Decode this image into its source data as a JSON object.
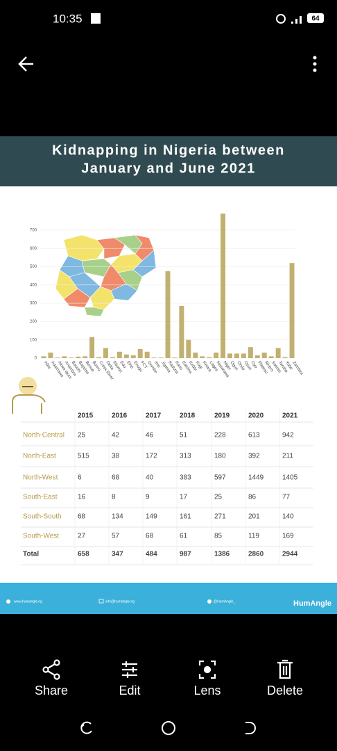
{
  "status_bar": {
    "time": "10:35",
    "battery": "64"
  },
  "toolbar": [
    "Share",
    "Edit",
    "Lens",
    "Delete"
  ],
  "infographic": {
    "title_lines": [
      "Kidnapping in Nigeria between",
      "January and June 2021"
    ],
    "chart_data": {
      "type": "bar",
      "color": "#c2b070",
      "categories": [
        "Abia",
        "Adamawa",
        "Akwa Ibom",
        "Anambra",
        "Bauchi",
        "Bayelsa",
        "Benue",
        "Borno",
        "Cross River",
        "Delta",
        "Ebonyi",
        "Edo",
        "Ekiti",
        "Enugu",
        "FCT",
        "Gombe",
        "Imo",
        "Jigawa",
        "Kaduna",
        "Kano",
        "Katsina",
        "Kebbi",
        "Kogi",
        "Kwara",
        "Lagos",
        "Nasarawa",
        "Niger",
        "Ogun",
        "Ondo",
        "Osun",
        "Oyo",
        "Plateau",
        "Rivers",
        "Sokoto",
        "Taraba",
        "Yobe",
        "Zamfara"
      ],
      "values": [
        10,
        30,
        3,
        10,
        3,
        8,
        10,
        115,
        5,
        55,
        5,
        35,
        20,
        15,
        50,
        35,
        3,
        3,
        475,
        3,
        285,
        100,
        30,
        10,
        5,
        30,
        790,
        25,
        25,
        25,
        60,
        15,
        30,
        10,
        55,
        5,
        520
      ],
      "ylim": [
        0,
        800
      ],
      "yticks": [
        0,
        100,
        200,
        300,
        400,
        500,
        600,
        700
      ],
      "grid": true
    },
    "table": {
      "header": [
        "2015",
        "2016",
        "2017",
        "2018",
        "2019",
        "2020",
        "2021"
      ],
      "rows": [
        [
          "North-Central",
          "25",
          "42",
          "46",
          "51",
          "228",
          "613",
          "942"
        ],
        [
          "North-East",
          "515",
          "38",
          "172",
          "313",
          "180",
          "392",
          "211"
        ],
        [
          "North-West",
          "6",
          "68",
          "40",
          "383",
          "597",
          "1449",
          "1405"
        ],
        [
          "South-East",
          "16",
          "8",
          "9",
          "17",
          "25",
          "86",
          "77"
        ],
        [
          "South-South",
          "68",
          "134",
          "149",
          "161",
          "271",
          "201",
          "140"
        ],
        [
          "South-West",
          "27",
          "57",
          "68",
          "61",
          "85",
          "119",
          "169"
        ],
        [
          "Total",
          "658",
          "347",
          "484",
          "987",
          "1386",
          "2860",
          "2944"
        ]
      ]
    },
    "footer": {
      "website": "www.humangle.ng",
      "email": "info@humangle.ng",
      "twitter": "@HumAngle_",
      "brand": "HumAngle"
    }
  }
}
